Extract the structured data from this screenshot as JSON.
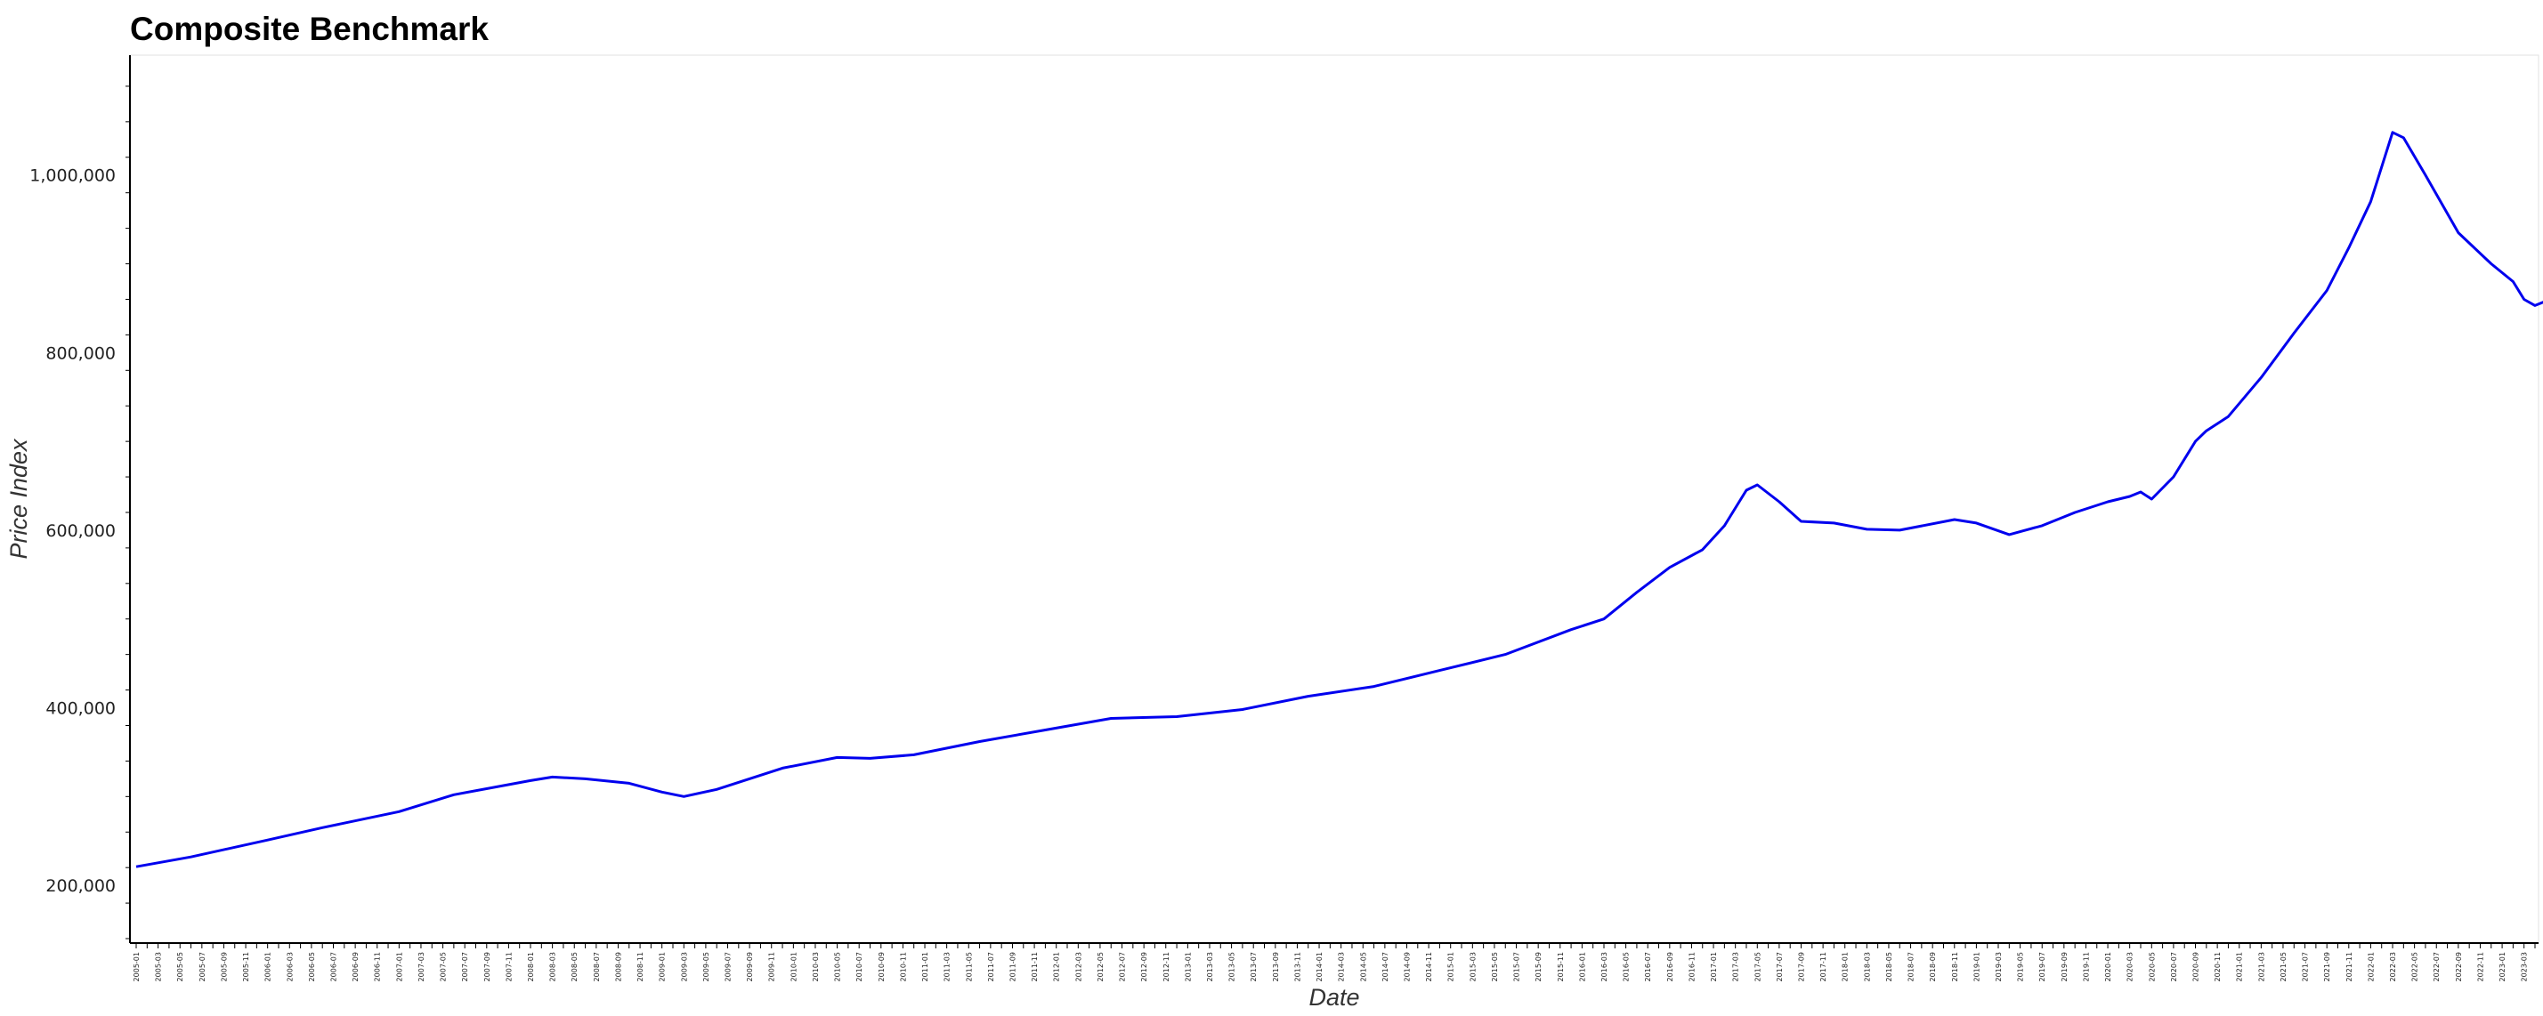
{
  "chart_data": {
    "type": "line",
    "title": "Composite Benchmark",
    "xlabel": "Date",
    "ylabel": "Price Index",
    "xlim": [
      "2005-01",
      "2023-04"
    ],
    "ylim": [
      135000,
      1135000
    ],
    "grid": false,
    "legend": "none",
    "y_ticks": [
      200000,
      400000,
      600000,
      800000,
      1000000
    ],
    "y_tick_labels": [
      "200,000",
      "400,000",
      "600,000",
      "800,000",
      "1,000,000"
    ],
    "line_color": "#0000ee",
    "keypoints": [
      [
        "2005-01",
        221000
      ],
      [
        "2005-06",
        232000
      ],
      [
        "2006-01",
        251000
      ],
      [
        "2006-06",
        265000
      ],
      [
        "2007-01",
        283000
      ],
      [
        "2007-06",
        302000
      ],
      [
        "2008-01",
        318000
      ],
      [
        "2008-03",
        322000
      ],
      [
        "2008-06",
        320000
      ],
      [
        "2008-10",
        315000
      ],
      [
        "2009-01",
        305000
      ],
      [
        "2009-03",
        300000
      ],
      [
        "2009-06",
        308000
      ],
      [
        "2009-12",
        332000
      ],
      [
        "2010-05",
        344000
      ],
      [
        "2010-08",
        343000
      ],
      [
        "2010-12",
        347000
      ],
      [
        "2011-06",
        362000
      ],
      [
        "2011-12",
        375000
      ],
      [
        "2012-06",
        388000
      ],
      [
        "2012-12",
        390000
      ],
      [
        "2013-06",
        398000
      ],
      [
        "2013-12",
        413000
      ],
      [
        "2014-06",
        424000
      ],
      [
        "2014-12",
        442000
      ],
      [
        "2015-06",
        460000
      ],
      [
        "2015-12",
        488000
      ],
      [
        "2016-03",
        500000
      ],
      [
        "2016-06",
        530000
      ],
      [
        "2016-09",
        558000
      ],
      [
        "2016-12",
        578000
      ],
      [
        "2017-02",
        605000
      ],
      [
        "2017-04",
        645000
      ],
      [
        "2017-05",
        651000
      ],
      [
        "2017-07",
        632000
      ],
      [
        "2017-09",
        610000
      ],
      [
        "2017-12",
        608000
      ],
      [
        "2018-03",
        601000
      ],
      [
        "2018-06",
        600000
      ],
      [
        "2018-11",
        612000
      ],
      [
        "2019-01",
        608000
      ],
      [
        "2019-04",
        595000
      ],
      [
        "2019-07",
        605000
      ],
      [
        "2019-10",
        620000
      ],
      [
        "2020-01",
        632000
      ],
      [
        "2020-03",
        638000
      ],
      [
        "2020-04",
        643000
      ],
      [
        "2020-05",
        635000
      ],
      [
        "2020-07",
        660000
      ],
      [
        "2020-09",
        700000
      ],
      [
        "2020-10",
        712000
      ],
      [
        "2020-12",
        728000
      ],
      [
        "2021-03",
        772000
      ],
      [
        "2021-06",
        822000
      ],
      [
        "2021-09",
        870000
      ],
      [
        "2021-11",
        918000
      ],
      [
        "2022-01",
        970000
      ],
      [
        "2022-03",
        1048000
      ],
      [
        "2022-04",
        1042000
      ],
      [
        "2022-06",
        1000000
      ],
      [
        "2022-09",
        935000
      ],
      [
        "2022-12",
        900000
      ],
      [
        "2023-02",
        880000
      ],
      [
        "2023-03",
        860000
      ],
      [
        "2023-04",
        853000
      ],
      [
        "2023-05",
        858000
      ],
      [
        "2023-06",
        878000
      ]
    ]
  }
}
